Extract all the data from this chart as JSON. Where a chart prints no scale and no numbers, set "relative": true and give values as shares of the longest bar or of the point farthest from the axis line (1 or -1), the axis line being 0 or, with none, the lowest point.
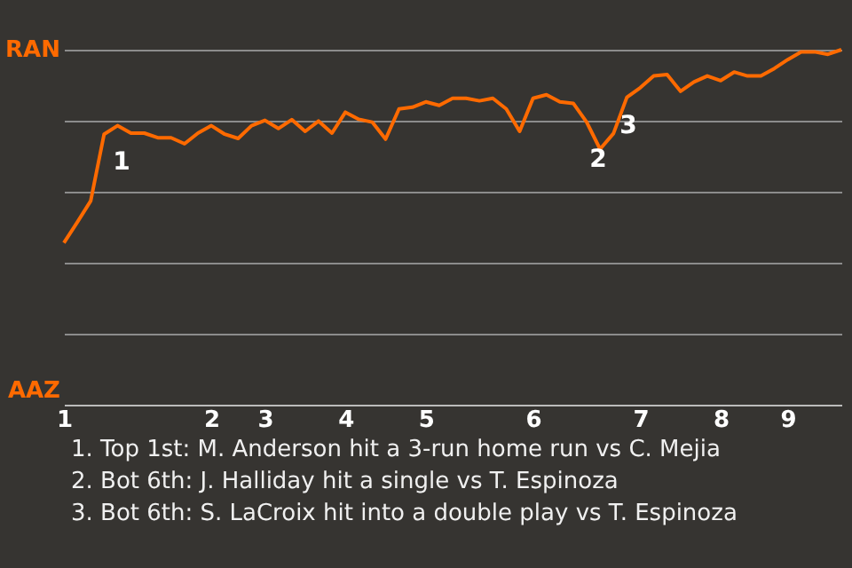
{
  "chart_data": {
    "type": "line",
    "relative": true,
    "categories": [
      "1",
      null,
      null,
      null,
      null,
      null,
      null,
      null,
      null,
      null,
      null,
      "2",
      null,
      null,
      null,
      "3",
      null,
      null,
      null,
      null,
      null,
      "4",
      null,
      null,
      null,
      null,
      null,
      "5",
      null,
      null,
      null,
      null,
      null,
      null,
      null,
      "6",
      null,
      null,
      null,
      null,
      null,
      null,
      null,
      "7",
      null,
      null,
      null,
      null,
      null,
      "8",
      null,
      null,
      null,
      null,
      "9",
      null,
      null,
      null,
      null
    ],
    "series": [
      {
        "color": "#ff6a00",
        "values": [
          0.456,
          0.514,
          0.574,
          0.762,
          0.786,
          0.765,
          0.765,
          0.752,
          0.752,
          0.735,
          0.765,
          0.786,
          0.762,
          0.75,
          0.786,
          0.801,
          0.778,
          0.803,
          0.77,
          0.799,
          0.765,
          0.824,
          0.804,
          0.796,
          0.748,
          0.833,
          0.838,
          0.853,
          0.843,
          0.863,
          0.863,
          0.856,
          0.863,
          0.833,
          0.77,
          0.863,
          0.873,
          0.853,
          0.849,
          0.796,
          0.72,
          0.764,
          0.866,
          0.893,
          0.926,
          0.93,
          0.883,
          0.909,
          0.926,
          0.913,
          0.937,
          0.926,
          0.926,
          0.947,
          0.972,
          0.994,
          0.994,
          0.987,
          1
        ]
      }
    ],
    "grid": "y",
    "annotations": [
      "RAN",
      "AAZ",
      {
        "text": "1",
        "y": 0.762
      },
      {
        "text": "2",
        "y": 0.72
      },
      "3",
      "1. Top 1st: M. Anderson hit a 3-run home run vs C. Mejia",
      "2. Bot 6th: J. Halliday hit a single vs T. Espinoza",
      "3. Bot 6th: S. LaCroix hit into a double play vs T. Espinoza"
    ]
  }
}
